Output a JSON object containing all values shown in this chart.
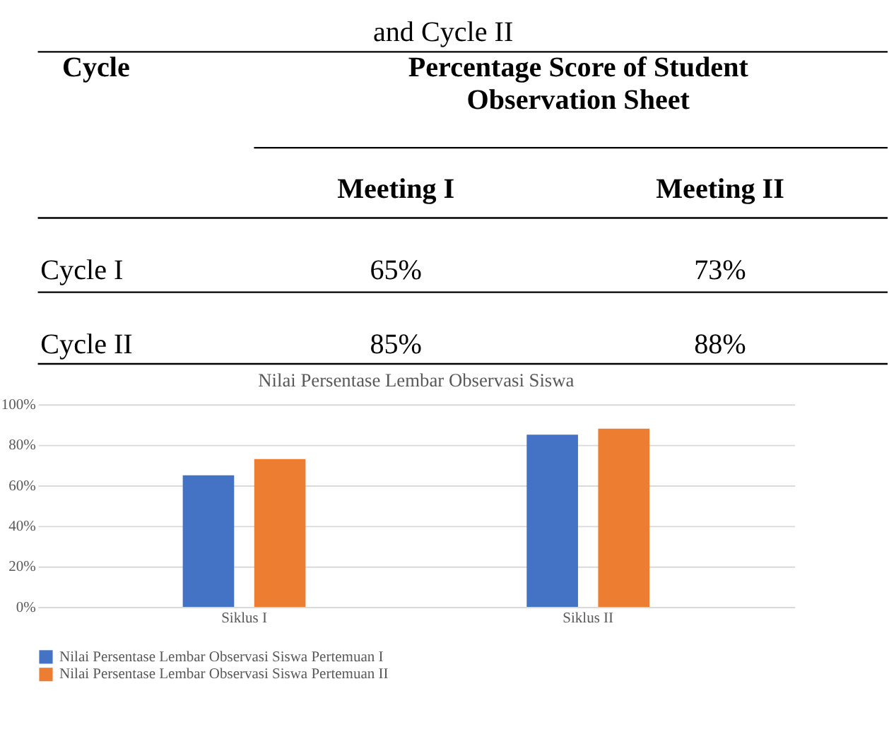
{
  "chart_data": [
    {
      "type": "other",
      "annotations": [
        "and Cycle II",
        "Cycle",
        "Percentage Score of Student Observation Sheet",
        "Meeting I",
        "Meeting II",
        "Cycle I",
        "65%",
        "73%",
        "Cycle II",
        "85%",
        "88%"
      ]
    },
    {
      "type": "bar",
      "title": "Nilai Persentase Lembar Observasi Siswa",
      "categories": [
        "Siklus I",
        "Siklus II"
      ],
      "series": [
        {
          "name": "Nilai Persentase Lembar Observasi Siswa Pertemuan I",
          "color": "#4472c4",
          "values": [
            65,
            85
          ]
        },
        {
          "name": "Nilai Persentase Lembar Observasi Siswa Pertemuan II",
          "color": "#ed7d31",
          "values": [
            73,
            88
          ]
        }
      ],
      "ylim": [
        0,
        100
      ],
      "yticks": [
        {
          "value": 0,
          "label": "0%"
        },
        {
          "value": 20,
          "label": "20%"
        },
        {
          "value": 40,
          "label": "40%"
        },
        {
          "value": 60,
          "label": "60%"
        },
        {
          "value": 80,
          "label": "80%"
        },
        {
          "value": 100,
          "label": "100%"
        }
      ],
      "grid": "y",
      "legend": "bottom"
    }
  ]
}
